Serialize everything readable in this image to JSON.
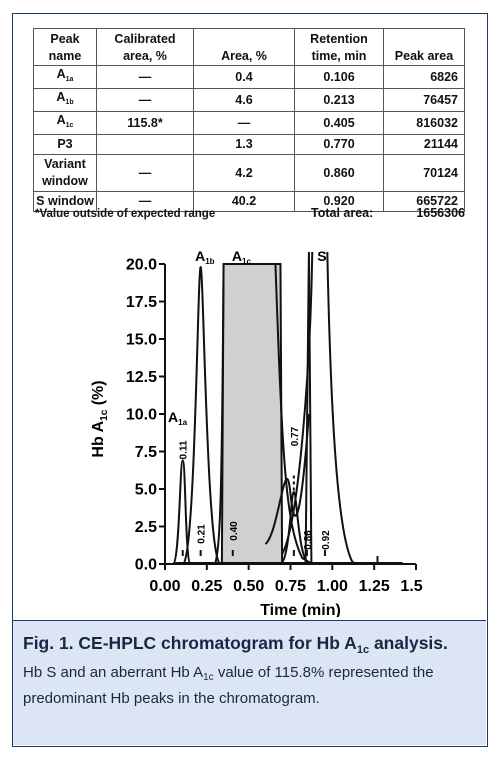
{
  "table": {
    "headers": [
      "Peak name",
      "Calibrated area, %",
      "Area, %",
      "Retention time, min",
      "Peak area"
    ],
    "rows": [
      {
        "name": "A",
        "name_sub": "1a",
        "calibrated": "—",
        "area": "0.4",
        "retention": "0.106",
        "peak_area": "6826"
      },
      {
        "name": "A",
        "name_sub": "1b",
        "calibrated": "—",
        "area": "4.6",
        "retention": "0.213",
        "peak_area": "76457"
      },
      {
        "name": "A",
        "name_sub": "1c",
        "calibrated": "115.8*",
        "area": "—",
        "retention": "0.405",
        "peak_area": "816032"
      },
      {
        "name": "P3",
        "name_sub": "",
        "calibrated": "",
        "area": "1.3",
        "retention": "0.770",
        "peak_area": "21144"
      },
      {
        "name": "Variant window",
        "name_sub": "",
        "calibrated": "—",
        "area": "4.2",
        "retention": "0.860",
        "peak_area": "70124"
      },
      {
        "name": "S window",
        "name_sub": "",
        "calibrated": "—",
        "area": "40.2",
        "retention": "0.920",
        "peak_area": "665722"
      }
    ],
    "footnote": "*Value outside of expected range",
    "total_label": "Total area:",
    "total_value": "1656306"
  },
  "chart_data": {
    "type": "line",
    "ylabel": "Hb A",
    "ylabel_sub": "1c",
    "ylabel_suffix": " (%)",
    "xlabel": "Time (min)",
    "xlim": [
      0,
      1.5
    ],
    "ylim": [
      0,
      20
    ],
    "x_ticks": [
      "0.00",
      "0.25",
      "0.50",
      "0.75",
      "1.00",
      "1.25",
      "1.50"
    ],
    "y_ticks": [
      "0.0",
      "2.5",
      "5.0",
      "7.5",
      "10.0",
      "12.5",
      "15.0",
      "17.5",
      "20.0"
    ],
    "peaks": [
      {
        "label": "A",
        "label_sub": "1a",
        "time": 0.106,
        "marker": "0.11",
        "height": 6.9
      },
      {
        "label": "A",
        "label_sub": "1b",
        "time": 0.213,
        "marker": "0.21",
        "height": 19.8
      },
      {
        "label": "A",
        "label_sub": "1c",
        "time": 0.405,
        "marker": "0.40",
        "height": 20
      },
      {
        "label": "",
        "label_sub": "",
        "time": 0.77,
        "marker": "0.77",
        "height": 4.8
      },
      {
        "label": "",
        "label_sub": "",
        "time": 0.86,
        "marker": "0.86",
        "height": 20
      },
      {
        "label": "S",
        "label_sub": "",
        "time": 0.92,
        "marker": "0.92",
        "height": 20
      }
    ],
    "grid": false
  },
  "caption": {
    "title_prefix": "Fig. 1. CE-HPLC chromatogram for Hb A",
    "title_sub": "1c",
    "title_suffix": " analysis.",
    "body_1": "Hb S and an aberrant Hb A",
    "body_sub": "1c",
    "body_2": " value of 115.8% represented the predominant Hb peaks in the chromatogram."
  },
  "colors": {
    "frame": "#1d3b66",
    "caption_bg": "#dbe5f3",
    "shaded_peak": "#d0d0d0"
  }
}
